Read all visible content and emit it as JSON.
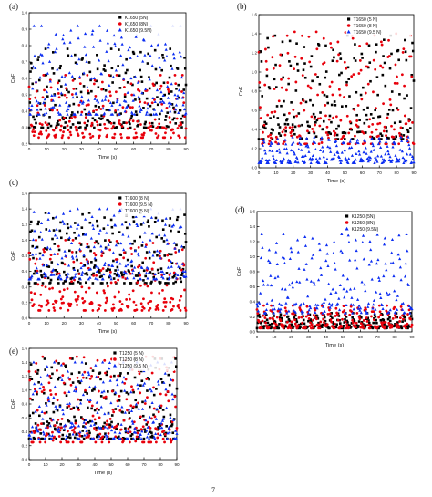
{
  "page_number": "7",
  "chart_data": [
    {
      "panel_label": "(a)",
      "type": "scatter",
      "xlabel": "Time (s)",
      "ylabel": "CoF",
      "xlim": [
        0,
        90
      ],
      "ylim": [
        0.2,
        1.0
      ],
      "xticks": [
        0,
        10,
        20,
        30,
        40,
        50,
        60,
        70,
        80,
        90
      ],
      "yticks": [
        0.2,
        0.3,
        0.4,
        0.5,
        0.6,
        0.7,
        0.8,
        0.9,
        1.0
      ],
      "grid": false,
      "legend_position": "top-right",
      "series": [
        {
          "name": "K1650 (5N)",
          "color": "#000000",
          "marker": "square",
          "low": 0.3,
          "high": 0.78,
          "seed": 11
        },
        {
          "name": "K1650 (8N)",
          "color": "#e8000b",
          "marker": "circle",
          "low": 0.24,
          "high": 0.62,
          "seed": 23
        },
        {
          "name": "K1650 (9.5N)",
          "color": "#0b2df2",
          "marker": "triangle",
          "low": 0.38,
          "high": 0.92,
          "seed": 37
        }
      ]
    },
    {
      "panel_label": "(b)",
      "type": "scatter",
      "xlabel": "Time (s)",
      "ylabel": "CoF",
      "xlim": [
        0,
        90
      ],
      "ylim": [
        0.0,
        1.6
      ],
      "xticks": [
        0,
        10,
        20,
        30,
        40,
        50,
        60,
        70,
        80,
        90
      ],
      "yticks": [
        0.0,
        0.2,
        0.4,
        0.6,
        0.8,
        1.0,
        1.2,
        1.4,
        1.6
      ],
      "grid": false,
      "legend_position": "top-right",
      "series": [
        {
          "name": "T1650 (5 N)",
          "color": "#000000",
          "marker": "square",
          "low": 0.3,
          "high": 1.38,
          "seed": 41
        },
        {
          "name": "T1650 (8 N)",
          "color": "#e8000b",
          "marker": "circle",
          "low": 0.25,
          "high": 1.42,
          "seed": 53
        },
        {
          "name": "T1650 (9.5 N)",
          "color": "#0b2df2",
          "marker": "triangle",
          "low": 0.05,
          "high": 0.32,
          "seed": 67
        }
      ]
    },
    {
      "panel_label": "(c)",
      "type": "scatter",
      "xlabel": "Time (s)",
      "ylabel": "CoF",
      "xlim": [
        0,
        90
      ],
      "ylim": [
        0.0,
        1.6
      ],
      "xticks": [
        0,
        10,
        20,
        30,
        40,
        50,
        60,
        70,
        80,
        90
      ],
      "yticks": [
        0.0,
        0.2,
        0.4,
        0.6,
        0.8,
        1.0,
        1.2,
        1.4,
        1.6
      ],
      "grid": false,
      "legend_position": "top-right",
      "series": [
        {
          "name": "T1600 (8 N)",
          "color": "#000000",
          "marker": "square",
          "low": 0.45,
          "high": 1.35,
          "seed": 71
        },
        {
          "name": "T1600 (9.5 N)",
          "color": "#e8000b",
          "marker": "circle",
          "low": 0.1,
          "high": 1.0,
          "seed": 83
        },
        {
          "name": "T1600 (5 N)",
          "color": "#0b2df2",
          "marker": "triangle",
          "low": 0.5,
          "high": 1.4,
          "seed": 97
        }
      ]
    },
    {
      "panel_label": "(d)",
      "type": "scatter",
      "xlabel": "Time (s)",
      "ylabel": "CoF",
      "xlim": [
        0,
        90
      ],
      "ylim": [
        0.0,
        1.6
      ],
      "xticks": [
        0,
        10,
        20,
        30,
        40,
        50,
        60,
        70,
        80,
        90
      ],
      "yticks": [
        0.0,
        0.2,
        0.4,
        0.6,
        0.8,
        1.0,
        1.2,
        1.4,
        1.6
      ],
      "grid": false,
      "legend_position": "top-right",
      "series": [
        {
          "name": "K1250 (5N)",
          "color": "#000000",
          "marker": "square",
          "low": 0.05,
          "high": 0.25,
          "seed": 101
        },
        {
          "name": "K1250 (8N)",
          "color": "#e8000b",
          "marker": "circle",
          "low": 0.05,
          "high": 0.35,
          "seed": 113
        },
        {
          "name": "K1250 (9.5N)",
          "color": "#0b2df2",
          "marker": "triangle",
          "low": 0.25,
          "high": 1.3,
          "seed": 127
        }
      ]
    },
    {
      "panel_label": "(e)",
      "type": "scatter",
      "xlabel": "Time (s)",
      "ylabel": "CoF",
      "xlim": [
        0,
        90
      ],
      "ylim": [
        0.0,
        1.6
      ],
      "xticks": [
        0,
        10,
        20,
        30,
        40,
        50,
        60,
        70,
        80,
        90
      ],
      "yticks": [
        0.0,
        0.2,
        0.4,
        0.6,
        0.8,
        1.0,
        1.2,
        1.4,
        1.6
      ],
      "grid": false,
      "legend_position": "top-right",
      "series": [
        {
          "name": "T1250 (5 N)",
          "color": "#000000",
          "marker": "square",
          "low": 0.3,
          "high": 1.45,
          "seed": 131
        },
        {
          "name": "T1250 (8 N)",
          "color": "#e8000b",
          "marker": "circle",
          "low": 0.25,
          "high": 1.48,
          "seed": 149
        },
        {
          "name": "T1250 (9.5 N)",
          "color": "#0b2df2",
          "marker": "triangle",
          "low": 0.3,
          "high": 1.4,
          "seed": 157
        }
      ]
    }
  ]
}
